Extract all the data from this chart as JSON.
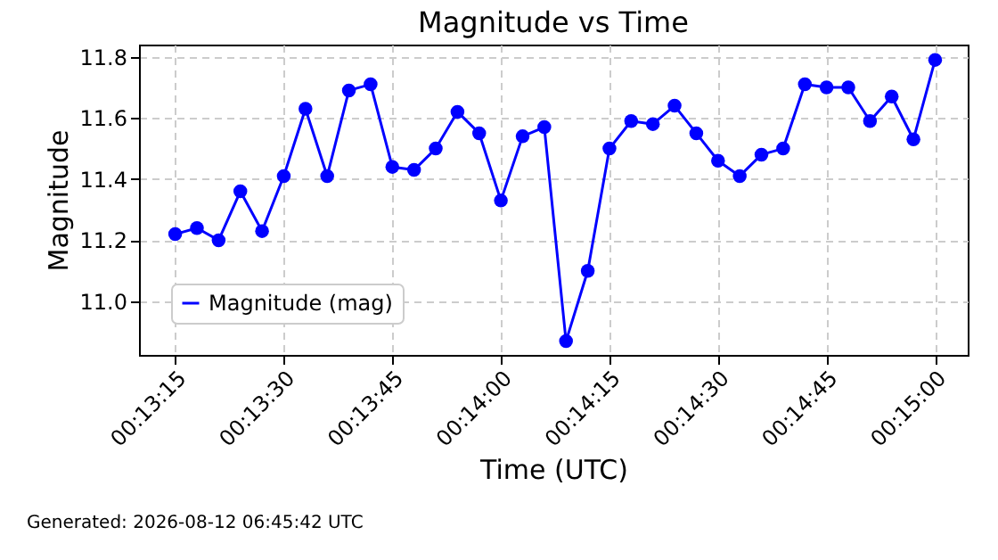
{
  "chart_data": {
    "type": "line",
    "title": "Magnitude vs Time",
    "xlabel": "Time (UTC)",
    "ylabel": "Magnitude",
    "annotations": [
      "Generated: 2026-08-12 06:45:42 UTC"
    ],
    "x": [
      0.220833,
      0.221667,
      0.2225,
      0.223333,
      0.224167,
      0.225,
      0.225833,
      0.226667,
      0.2275,
      0.228333,
      0.229167,
      0.23,
      0.230833,
      0.231667,
      0.2325,
      0.233333,
      0.234167,
      0.235,
      0.235833,
      0.236667,
      0.2375,
      0.238333,
      0.239167,
      0.24,
      0.240833,
      0.241667,
      0.2425,
      0.243333,
      0.244167,
      0.245,
      0.245833,
      0.246667,
      0.2475,
      0.248333,
      0.249167,
      0.25
    ],
    "series": [
      {
        "name": "Magnitude (mag)",
        "color": "#0000ff",
        "values": [
          11.22,
          11.24,
          11.2,
          11.36,
          11.23,
          11.41,
          11.63,
          11.41,
          11.69,
          11.71,
          11.44,
          11.43,
          11.5,
          11.62,
          11.55,
          11.33,
          11.54,
          11.57,
          10.87,
          11.1,
          11.5,
          11.59,
          11.58,
          11.64,
          11.55,
          11.46,
          11.41,
          11.48,
          11.5,
          11.71,
          11.7,
          11.7,
          11.59,
          11.67,
          11.53,
          11.79
        ]
      }
    ],
    "xlim": [
      0.219444,
      0.25125
    ],
    "xticks": [
      {
        "value": 0.220833,
        "label": "00:13:15"
      },
      {
        "value": 0.225,
        "label": "00:13:30"
      },
      {
        "value": 0.229167,
        "label": "00:13:45"
      },
      {
        "value": 0.233333,
        "label": "00:14:00"
      },
      {
        "value": 0.2375,
        "label": "00:14:15"
      },
      {
        "value": 0.241667,
        "label": "00:14:30"
      },
      {
        "value": 0.245833,
        "label": "00:14:45"
      },
      {
        "value": 0.25,
        "label": "00:15:00"
      }
    ],
    "ylim": [
      10.825,
      11.84
    ],
    "yticks": [
      {
        "value": 11.0,
        "label": "11.0"
      },
      {
        "value": 11.2,
        "label": "11.2"
      },
      {
        "value": 11.4,
        "label": "11.4"
      },
      {
        "value": 11.6,
        "label": "11.6"
      },
      {
        "value": 11.8,
        "label": "11.8"
      }
    ],
    "grid": true,
    "legend": "bottom left",
    "marker": "circle",
    "line_style": "solid"
  }
}
